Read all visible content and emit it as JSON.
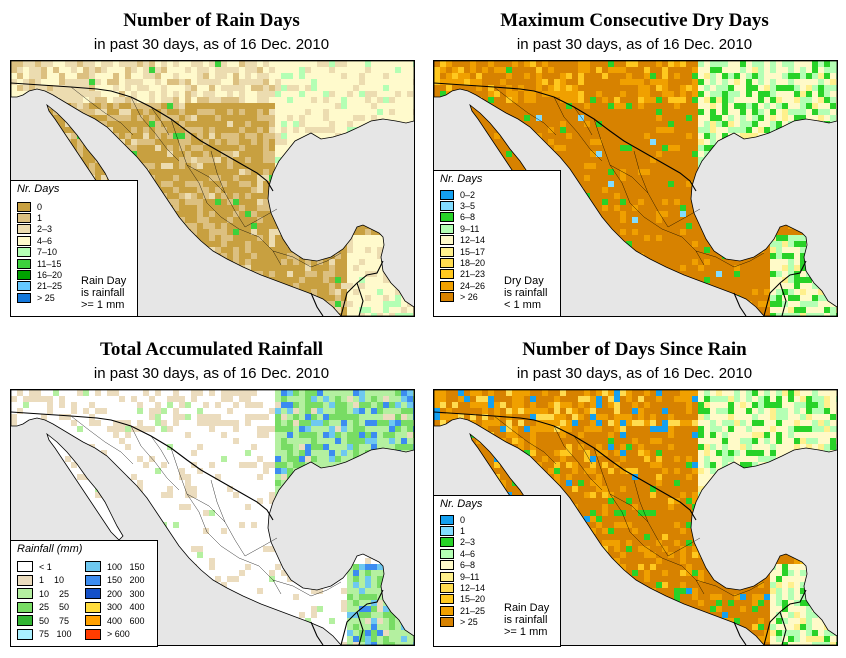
{
  "panels": [
    {
      "id": "rain-days",
      "title": "Number of Rain Days",
      "subtitle": "in past 30 days, as of  16 Dec. 2010",
      "legend_title": "Nr. Days",
      "legend": [
        {
          "label": "0",
          "color": "#c8a040"
        },
        {
          "label": "1",
          "color": "#dcc080"
        },
        {
          "label": "2–3",
          "color": "#ecdcb0"
        },
        {
          "label": "4–6",
          "color": "#fffacc"
        },
        {
          "label": "7–10",
          "color": "#b4ffb4"
        },
        {
          "label": "11–15",
          "color": "#3cd23c"
        },
        {
          "label": "16–20",
          "color": "#00a000"
        },
        {
          "label": "21–25",
          "color": "#64c8ff"
        },
        {
          "label": "> 25",
          "color": "#1478dc"
        }
      ],
      "note": [
        "Rain Day",
        "is rainfall",
        ">= 1 mm"
      ],
      "base_color": "#c8a040",
      "mix": [
        [
          "#c8a040",
          0.62
        ],
        [
          "#dcc080",
          0.3
        ],
        [
          "#ecdcb0",
          0.06
        ],
        [
          "#3cd23c",
          0.02
        ]
      ],
      "north_mix": [
        [
          "#ecdcb0",
          0.4
        ],
        [
          "#fffacc",
          0.4
        ],
        [
          "#dcc080",
          0.18
        ],
        [
          "#3cd23c",
          0.02
        ]
      ],
      "east_mix": [
        [
          "#fffacc",
          0.7
        ],
        [
          "#ecdcb0",
          0.2
        ],
        [
          "#b4ffb4",
          0.1
        ]
      ]
    },
    {
      "id": "max-dry-days",
      "title": "Maximum Consecutive Dry Days",
      "subtitle": "in past 30 days, as of  16 Dec. 2010",
      "legend_title": "Nr. Days",
      "legend": [
        {
          "label": "0–2",
          "color": "#14a0f0"
        },
        {
          "label": "3–5",
          "color": "#82dcff"
        },
        {
          "label": "6–8",
          "color": "#28d228"
        },
        {
          "label": "9–11",
          "color": "#b4ffb4"
        },
        {
          "label": "12–14",
          "color": "#fffac8"
        },
        {
          "label": "15–17",
          "color": "#fff08c"
        },
        {
          "label": "18–20",
          "color": "#ffdc50"
        },
        {
          "label": "21–23",
          "color": "#ffc81e"
        },
        {
          "label": "24–26",
          "color": "#f0a000"
        },
        {
          "label": "> 26",
          "color": "#d78200"
        }
      ],
      "note": [
        "Dry Day",
        "is rainfall",
        "< 1 mm"
      ],
      "base_color": "#d78200",
      "mix": [
        [
          "#d78200",
          0.82
        ],
        [
          "#f0a000",
          0.12
        ],
        [
          "#28d228",
          0.04
        ],
        [
          "#82dcff",
          0.02
        ]
      ],
      "north_mix": [
        [
          "#d78200",
          0.55
        ],
        [
          "#f0a000",
          0.25
        ],
        [
          "#ffc81e",
          0.15
        ],
        [
          "#28d228",
          0.05
        ]
      ],
      "east_mix": [
        [
          "#fffac8",
          0.4
        ],
        [
          "#b4ffb4",
          0.3
        ],
        [
          "#28d228",
          0.2
        ],
        [
          "#fff08c",
          0.1
        ]
      ]
    },
    {
      "id": "total-rainfall",
      "title": "Total Accumulated Rainfall",
      "subtitle": "in past 30 days, as of  16 Dec. 2010",
      "legend_title": "Rainfall (mm)",
      "legend": [
        {
          "label": "< 1",
          "color": "#ffffff"
        },
        {
          "label": "1    10",
          "color": "#ebdcbe"
        },
        {
          "label": "10    25",
          "color": "#b4f0a0"
        },
        {
          "label": "25    50",
          "color": "#78dc64"
        },
        {
          "label": "50    75",
          "color": "#32b432"
        },
        {
          "label": "75   100",
          "color": "#aaf0ff"
        },
        {
          "label": "100   150",
          "color": "#6ec8f0"
        },
        {
          "label": "150   200",
          "color": "#3c8cf0"
        },
        {
          "label": "200   300",
          "color": "#1450c8"
        },
        {
          "label": "300   400",
          "color": "#ffdc3c"
        },
        {
          "label": "400   600",
          "color": "#ffa000"
        },
        {
          "label": "> 600",
          "color": "#ff3c00"
        }
      ],
      "note": [],
      "base_color": "#ffffff",
      "mix": [
        [
          "#ffffff",
          0.85
        ],
        [
          "#ebdcbe",
          0.13
        ],
        [
          "#b4f0a0",
          0.02
        ]
      ],
      "north_mix": [
        [
          "#ffffff",
          0.55
        ],
        [
          "#ebdcbe",
          0.4
        ],
        [
          "#b4f0a0",
          0.05
        ]
      ],
      "east_mix": [
        [
          "#b4f0a0",
          0.45
        ],
        [
          "#78dc64",
          0.3
        ],
        [
          "#6ec8f0",
          0.12
        ],
        [
          "#3c8cf0",
          0.08
        ],
        [
          "#ebdcbe",
          0.05
        ]
      ]
    },
    {
      "id": "days-since-rain",
      "title": "Number of Days Since Rain",
      "subtitle": "in past 30 days, as of  16 Dec. 2010",
      "legend_title": "Nr. Days",
      "legend": [
        {
          "label": "0",
          "color": "#14a0f0"
        },
        {
          "label": "1",
          "color": "#82dcff"
        },
        {
          "label": "2–3",
          "color": "#28d228"
        },
        {
          "label": "4–6",
          "color": "#b4ffb4"
        },
        {
          "label": "6–8",
          "color": "#fffac8"
        },
        {
          "label": "9–11",
          "color": "#fff08c"
        },
        {
          "label": "12–14",
          "color": "#ffdc50"
        },
        {
          "label": "15–20",
          "color": "#ffc81e"
        },
        {
          "label": "21–25",
          "color": "#f0a000"
        },
        {
          "label": "> 25",
          "color": "#d78200"
        }
      ],
      "note": [
        "Rain Day",
        "is rainfall",
        ">= 1 mm"
      ],
      "base_color": "#d78200",
      "mix": [
        [
          "#d78200",
          0.7
        ],
        [
          "#f0a000",
          0.18
        ],
        [
          "#ffc81e",
          0.06
        ],
        [
          "#28d228",
          0.04
        ],
        [
          "#14a0f0",
          0.02
        ]
      ],
      "north_mix": [
        [
          "#d78200",
          0.45
        ],
        [
          "#f0a000",
          0.3
        ],
        [
          "#ffdc50",
          0.15
        ],
        [
          "#14a0f0",
          0.1
        ]
      ],
      "east_mix": [
        [
          "#fffac8",
          0.45
        ],
        [
          "#b4ffb4",
          0.3
        ],
        [
          "#28d228",
          0.15
        ],
        [
          "#fff08c",
          0.1
        ]
      ]
    }
  ],
  "colors": {
    "ocean": "#e6e6e6",
    "border": "#000000"
  }
}
